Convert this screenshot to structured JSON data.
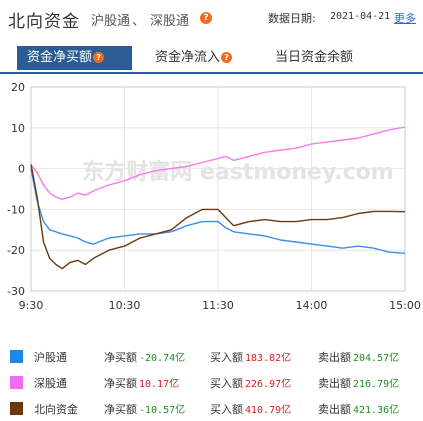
{
  "header": {
    "title": "北向资金",
    "link_hgt": "沪股通",
    "separator": "、",
    "link_sgt": "深股通",
    "date_label": "数据日期:",
    "date_value": "2021-04-21",
    "more_label": "更多"
  },
  "tabs": [
    {
      "label": "资金净买额",
      "active": true
    },
    {
      "label": "资金净流入",
      "active": false
    },
    {
      "label": "当日资金余额",
      "active": false
    }
  ],
  "watermark": "东方财富网 eastmoney.com",
  "chart_data": {
    "type": "line",
    "x_ticks": [
      "9:30",
      "10:30",
      "11:30",
      "14:00",
      "15:00"
    ],
    "y_ticks": [
      20,
      10,
      0,
      -10,
      -20,
      -30
    ],
    "ylim": [
      -30,
      20
    ],
    "grid": true,
    "series": [
      {
        "name": "沪股通",
        "color": "#3e8ee6",
        "x": [
          0,
          4,
          8,
          12,
          16,
          20,
          25,
          30,
          35,
          40,
          50,
          60,
          70,
          80,
          90,
          100,
          110,
          120,
          125,
          130,
          140,
          150,
          160,
          170,
          180,
          190,
          200,
          210,
          220,
          230,
          240
        ],
        "values": [
          0,
          -8,
          -13,
          -15,
          -15.5,
          -16,
          -16.5,
          -17,
          -18,
          -18.5,
          -17,
          -16.5,
          -16,
          -16,
          -15.5,
          -14,
          -13,
          -13,
          -14.5,
          -15.5,
          -16,
          -16.5,
          -17.5,
          -18,
          -18.5,
          -19,
          -19.5,
          -19,
          -19.5,
          -20.5,
          -20.74
        ]
      },
      {
        "name": "深股通",
        "color": "#f77bf0",
        "x": [
          0,
          4,
          8,
          12,
          16,
          20,
          25,
          30,
          35,
          40,
          50,
          60,
          70,
          80,
          90,
          100,
          110,
          120,
          125,
          130,
          140,
          150,
          160,
          170,
          180,
          190,
          200,
          210,
          220,
          230,
          240
        ],
        "values": [
          1,
          -1,
          -4,
          -6,
          -7,
          -7.5,
          -7,
          -6,
          -6.5,
          -5.5,
          -4,
          -3,
          -1.5,
          -0.5,
          0,
          0.5,
          1.5,
          2.5,
          3,
          2,
          3,
          4,
          4.5,
          5,
          6,
          6.5,
          7,
          7.5,
          8.5,
          9.5,
          10.17
        ]
      },
      {
        "name": "北向资金",
        "color": "#6b3a0c",
        "x": [
          0,
          4,
          8,
          12,
          16,
          20,
          25,
          30,
          35,
          40,
          50,
          60,
          70,
          80,
          90,
          100,
          110,
          120,
          125,
          130,
          140,
          150,
          160,
          170,
          180,
          190,
          200,
          210,
          220,
          230,
          240
        ],
        "values": [
          1,
          -7,
          -18,
          -22,
          -23.5,
          -24.5,
          -23,
          -22.5,
          -23.5,
          -22,
          -20,
          -19,
          -17,
          -16,
          -15,
          -12,
          -10,
          -10,
          -12,
          -14,
          -13,
          -12.5,
          -13,
          -13,
          -12.5,
          -12.5,
          -12,
          -11,
          -10.5,
          -10.5,
          -10.57
        ]
      }
    ],
    "legend": [
      {
        "name": "沪股通",
        "net_label": "净买额",
        "net_value": "-20.74亿",
        "net_sign": "neg",
        "buy_label": "买入额",
        "buy_value": "183.82亿",
        "sell_label": "卖出额",
        "sell_value": "204.57亿"
      },
      {
        "name": "深股通",
        "net_label": "净买额",
        "net_value": "10.17亿",
        "net_sign": "pos",
        "buy_label": "买入额",
        "buy_value": "226.97亿",
        "sell_label": "卖出额",
        "sell_value": "216.79亿"
      },
      {
        "name": "北向资金",
        "net_label": "净买额",
        "net_value": "-10.57亿",
        "net_sign": "neg",
        "buy_label": "买入额",
        "buy_value": "410.79亿",
        "sell_label": "卖出额",
        "sell_value": "421.36亿"
      }
    ]
  }
}
